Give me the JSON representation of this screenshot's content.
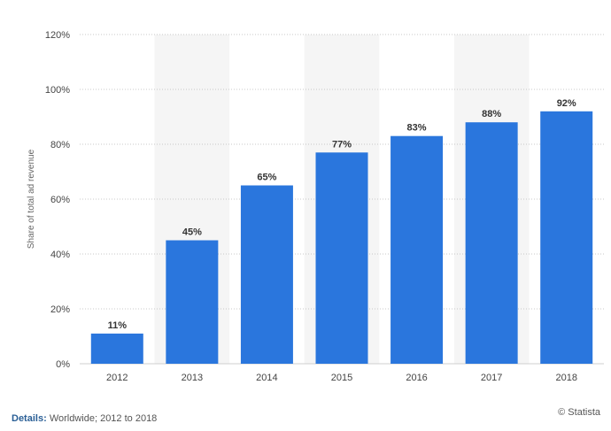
{
  "chart_data": {
    "type": "bar",
    "categories": [
      "2012",
      "2013",
      "2014",
      "2015",
      "2016",
      "2017",
      "2018"
    ],
    "values": [
      11,
      45,
      65,
      77,
      83,
      88,
      92
    ],
    "value_labels": [
      "11%",
      "45%",
      "65%",
      "77%",
      "83%",
      "88%",
      "92%"
    ],
    "title": "",
    "xlabel": "",
    "ylabel": "Share of total ad revenue",
    "ylim": [
      0,
      120
    ],
    "yticks": [
      0,
      20,
      40,
      60,
      80,
      100,
      120
    ],
    "ytick_labels": [
      "0%",
      "20%",
      "40%",
      "60%",
      "80%",
      "100%",
      "120%"
    ],
    "grid": true,
    "legend": "none",
    "bar_color": "#2a76dd",
    "band_color": "#f5f5f5"
  },
  "footer": {
    "details_label": "Details:",
    "details_text": "Worldwide; 2012 to 2018",
    "source": "© Statista"
  }
}
